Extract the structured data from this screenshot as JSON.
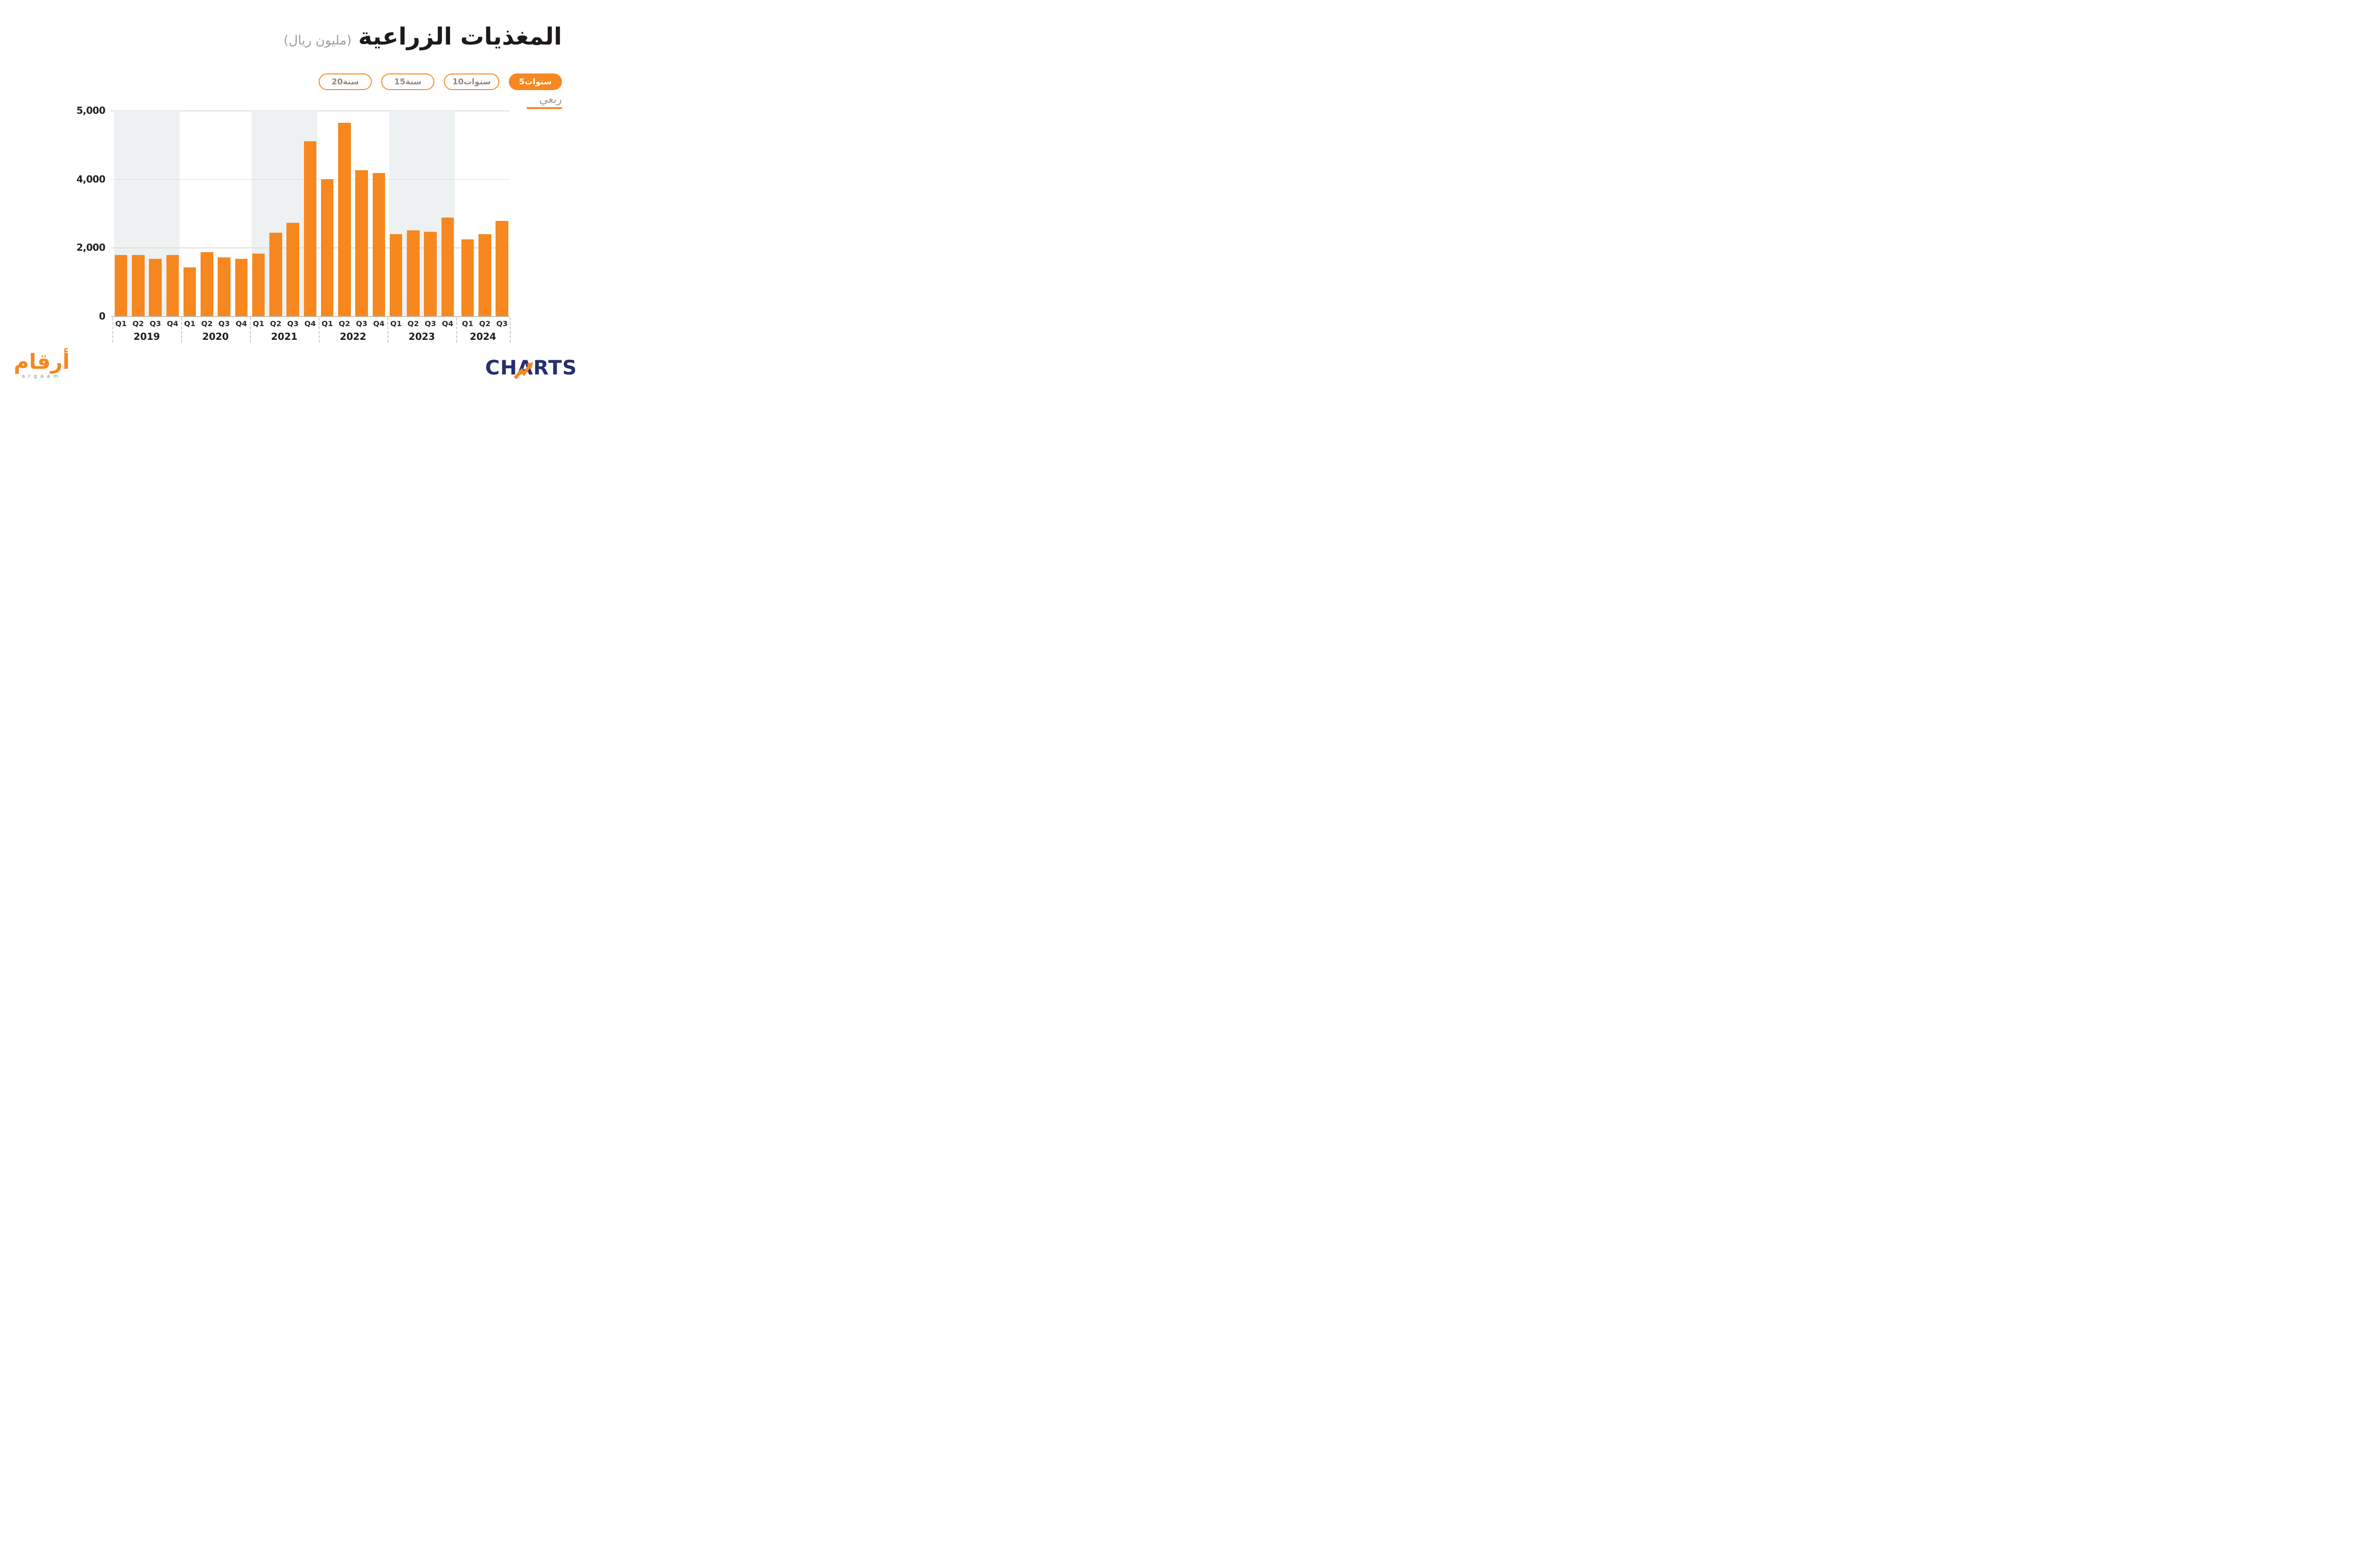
{
  "header": {
    "title": "المغذيات الزراعية",
    "subtitle": "(مليون ريال)"
  },
  "filters": {
    "items": [
      {
        "label": "20سنة",
        "active": false
      },
      {
        "label": "15سنة",
        "active": false
      },
      {
        "label": "10سنوات",
        "active": false
      },
      {
        "label": "5سنوات",
        "active": true
      }
    ]
  },
  "periodicity": {
    "label": "ربعي"
  },
  "chart_data": {
    "type": "bar",
    "title": "المغذيات الزراعية",
    "unit_label": "(مليون ريال)",
    "bar_color": "#f6881f",
    "grid": true,
    "y_axis": {
      "note": "non-linear axis: gridlines evenly spaced at values 0, 2000, 4000, 5000",
      "ticks": [
        {
          "value": 0,
          "label": "0"
        },
        {
          "value": 2000,
          "label": "2,000"
        },
        {
          "value": 4000,
          "label": "4,000"
        },
        {
          "value": 5000,
          "label": "5,000"
        }
      ]
    },
    "groups": [
      {
        "year": "2019",
        "shaded": true,
        "quarters": [
          "Q1",
          "Q2",
          "Q3",
          "Q4"
        ],
        "values": [
          1790,
          1790,
          1670,
          1790
        ]
      },
      {
        "year": "2020",
        "shaded": false,
        "quarters": [
          "Q1",
          "Q2",
          "Q3",
          "Q4"
        ],
        "values": [
          1430,
          1860,
          1720,
          1670
        ]
      },
      {
        "year": "2021",
        "shaded": true,
        "quarters": [
          "Q1",
          "Q2",
          "Q3",
          "Q4"
        ],
        "values": [
          1820,
          2440,
          2720,
          4550
        ]
      },
      {
        "year": "2022",
        "shaded": false,
        "quarters": [
          "Q1",
          "Q2",
          "Q3",
          "Q4"
        ],
        "values": [
          4000,
          4820,
          4130,
          4090
        ]
      },
      {
        "year": "2023",
        "shaded": true,
        "quarters": [
          "Q1",
          "Q2",
          "Q3",
          "Q4"
        ],
        "values": [
          2390,
          2500,
          2460,
          2880
        ]
      },
      {
        "year": "2024",
        "shaded": false,
        "quarters": [
          "Q1",
          "Q2",
          "Q3"
        ],
        "values": [
          2240,
          2390,
          2780
        ]
      }
    ]
  },
  "footer": {
    "argaam_ar": "أرقام",
    "argaam_en": "argaam",
    "charts": "CHARTS"
  }
}
